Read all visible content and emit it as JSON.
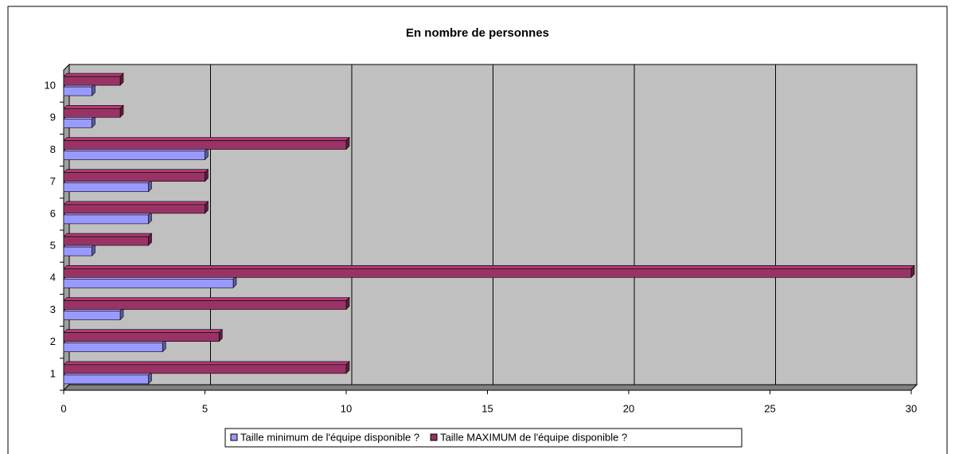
{
  "chart_data": {
    "type": "bar",
    "orientation": "horizontal",
    "title": "En nombre de personnes",
    "categories": [
      "1",
      "2",
      "3",
      "4",
      "5",
      "6",
      "7",
      "8",
      "9",
      "10"
    ],
    "series": [
      {
        "name": "Taille minimum de l'équipe disponible ?",
        "color": "#9999ff",
        "values": [
          3,
          3.5,
          2,
          6,
          1,
          3,
          3,
          5,
          1,
          1
        ]
      },
      {
        "name": "Taille MAXIMUM de l'équipe disponible ?",
        "color": "#993366",
        "values": [
          10,
          5.5,
          10,
          30,
          3,
          5,
          5,
          10,
          2,
          2
        ]
      }
    ],
    "xlim": [
      0,
      30
    ],
    "xticks": [
      0,
      5,
      10,
      15,
      20,
      25,
      30
    ],
    "grid": true,
    "legend": "bottom"
  }
}
